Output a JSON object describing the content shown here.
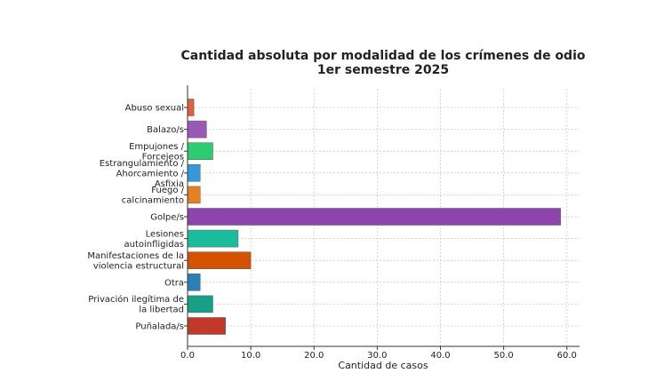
{
  "chart_data": {
    "type": "bar",
    "orientation": "horizontal",
    "title": [
      "Cantidad absoluta por modalidad de los crímenes de odio",
      "1er semestre 2025"
    ],
    "xlabel": "Cantidad de casos",
    "ylabel": "",
    "xlim": [
      0,
      62
    ],
    "xticks": [
      "0.0",
      "10.0",
      "20.0",
      "30.0",
      "40.0",
      "50.0",
      "60.0"
    ],
    "grid": true,
    "categories": [
      [
        "Abuso sexual"
      ],
      [
        "Balazo/s"
      ],
      [
        "Empujones /",
        "Forcejeos"
      ],
      [
        "Estrangulamiento /",
        "Ahorcamiento /",
        "Asfixia"
      ],
      [
        "Fuego /",
        "calcinamiento"
      ],
      [
        "Golpe/s"
      ],
      [
        "Lesiones",
        "autoinfligidas"
      ],
      [
        "Manifestaciones de la",
        "violencia estructural"
      ],
      [
        "Otra"
      ],
      [
        "Privación ilegítima de",
        "la libertad"
      ],
      [
        "Puñalada/s"
      ]
    ],
    "values": [
      1,
      3,
      4,
      2,
      2,
      59,
      8,
      10,
      2,
      4,
      6
    ],
    "colors": [
      "#e15f3f",
      "#9b59b6",
      "#2ecc71",
      "#3498db",
      "#e67e22",
      "#8e44ad",
      "#1abc9c",
      "#d35400",
      "#2980b9",
      "#16a085",
      "#c0392b"
    ]
  }
}
